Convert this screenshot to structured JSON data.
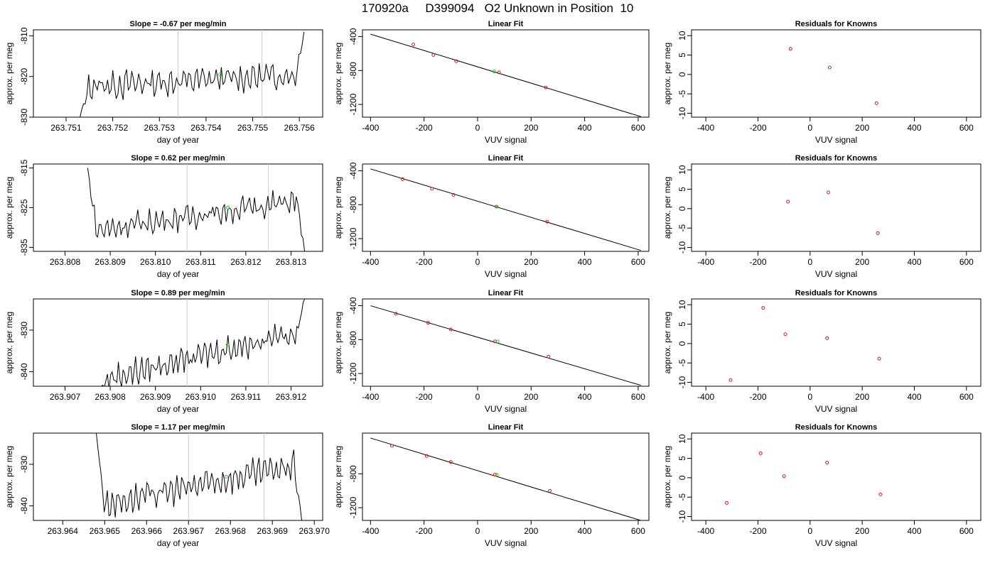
{
  "page_title": "170920a     D399094   O2 Unknown in Position  10",
  "colors": {
    "line": "#000000",
    "residual_points": "#cc2222",
    "unknown_point": "#22cc22",
    "marker_lines": "#c8c8c8"
  },
  "chart_data": [
    {
      "type": "line",
      "panel": "time-1",
      "title": "Slope =  -0.67  per meg/min",
      "xlabel": "day of year",
      "ylabel": "approx. per meg",
      "xlim": [
        263.7503,
        263.7565
      ],
      "ylim": [
        -830,
        -808.5
      ],
      "xticks": [
        "263.751",
        "263.752",
        "263.753",
        "263.754",
        "263.755",
        "263.756"
      ],
      "yticks": [
        "-810",
        "-820",
        "-830"
      ],
      "markers": [
        263.7534,
        263.7552
      ],
      "series_x_range": [
        263.7513,
        263.7561
      ],
      "unknown_point": {
        "x": 263.7543,
        "y": -819.5
      },
      "tail_start": -830,
      "tail_end": -809,
      "baseline": -821,
      "trend": 1.5,
      "noise": 2.8
    },
    {
      "type": "line",
      "panel": "time-2",
      "title": "Slope =  0.62  per meg/min",
      "xlabel": "day of year",
      "ylabel": "approx. per meg",
      "xlim": [
        263.8073,
        263.8137
      ],
      "ylim": [
        -836,
        -814
      ],
      "xticks": [
        "263.808",
        "263.809",
        "263.810",
        "263.811",
        "263.812",
        "263.813"
      ],
      "yticks": [
        "-815",
        "-825",
        "-835"
      ],
      "markers": [
        263.8107,
        263.8125
      ],
      "series_x_range": [
        263.8085,
        263.8133
      ],
      "unknown_point": {
        "x": 263.8116,
        "y": -825
      },
      "tail_start": -815,
      "tail_end": -836,
      "baseline": -827,
      "trend": 4,
      "noise": 2.6
    },
    {
      "type": "line",
      "panel": "time-3",
      "title": "Slope =  0.89  per meg/min",
      "xlabel": "day of year",
      "ylabel": "approx. per meg",
      "xlim": [
        263.9063,
        263.9127
      ],
      "ylim": [
        -843.5,
        -822.5
      ],
      "xticks": [
        "263.907",
        "263.908",
        "263.909",
        "263.910",
        "263.911",
        "263.912"
      ],
      "yticks": [
        "-830",
        "-840"
      ],
      "markers": [
        263.9097,
        263.9115
      ],
      "series_x_range": [
        263.9078,
        263.9123
      ],
      "unknown_point": {
        "x": 263.9106,
        "y": -833.5
      },
      "tail_start": -843.5,
      "tail_end": -822.5,
      "baseline": -836,
      "trend": 6,
      "noise": 2.6
    },
    {
      "type": "line",
      "panel": "time-4",
      "title": "Slope =  1.17  per meg/min",
      "xlabel": "day of year",
      "ylabel": "approx. per meg",
      "xlim": [
        263.9633,
        263.9702
      ],
      "ylim": [
        -843.5,
        -822.5
      ],
      "xticks": [
        "263.964",
        "263.965",
        "263.966",
        "263.967",
        "263.968",
        "263.969",
        "263.970"
      ],
      "yticks": [
        "-830",
        "-840"
      ],
      "markers": [
        263.967,
        263.9688
      ],
      "series_x_range": [
        263.9648,
        263.9697
      ],
      "unknown_point": {
        "x": 263.9679,
        "y": -833
      },
      "tail_start": -822.5,
      "tail_end": -843.5,
      "baseline": -835,
      "trend": 5,
      "noise": 2.7
    },
    {
      "type": "scatter",
      "panel": "fit-1",
      "title": "Linear Fit",
      "xlabel": "VUV signal",
      "ylabel": "approx. per meg",
      "xlim": [
        -430,
        640
      ],
      "ylim": [
        -1350,
        -320
      ],
      "xticks": [
        "-400",
        "-200",
        "0",
        "200",
        "400",
        "600"
      ],
      "yticks": [
        "-400",
        "-800",
        "-1200"
      ],
      "fit_line": [
        [
          -400,
          -371
        ],
        [
          610,
          -1344
        ]
      ],
      "points": [
        [
          -240,
          -493
        ],
        [
          -165,
          -617
        ],
        [
          -80,
          -690
        ],
        [
          80,
          -821
        ],
        [
          255,
          -1000
        ]
      ],
      "unknown_point": [
        62,
        -810
      ]
    },
    {
      "type": "scatter",
      "panel": "fit-2",
      "title": "Linear Fit",
      "xlabel": "VUV signal",
      "ylabel": "approx. per meg",
      "xlim": [
        -430,
        640
      ],
      "ylim": [
        -1350,
        -320
      ],
      "xticks": [
        "-400",
        "-200",
        "0",
        "200",
        "400",
        "600"
      ],
      "yticks": [
        "-400",
        "-800",
        "-1200"
      ],
      "fit_line": [
        [
          -400,
          -378
        ],
        [
          610,
          -1339
        ]
      ],
      "points": [
        [
          -280,
          -500
        ],
        [
          -170,
          -612
        ],
        [
          -90,
          -683
        ],
        [
          70,
          -822
        ],
        [
          260,
          -1000
        ]
      ],
      "unknown_point": [
        72,
        -823
      ]
    },
    {
      "type": "scatter",
      "panel": "fit-3",
      "title": "Linear Fit",
      "xlabel": "VUV signal",
      "ylabel": "approx. per meg",
      "xlim": [
        -430,
        640
      ],
      "ylim": [
        -1350,
        -320
      ],
      "xticks": [
        "-400",
        "-200",
        "0",
        "200",
        "400",
        "600"
      ],
      "yticks": [
        "-400",
        "-800",
        "-1200"
      ],
      "fit_line": [
        [
          -400,
          -400
        ],
        [
          610,
          -1339
        ]
      ],
      "points": [
        [
          -305,
          -495
        ],
        [
          -185,
          -602
        ],
        [
          -100,
          -680
        ],
        [
          65,
          -820
        ],
        [
          265,
          -1000
        ]
      ],
      "unknown_point": [
        75,
        -822
      ]
    },
    {
      "type": "scatter",
      "panel": "fit-4",
      "title": "Linear Fit",
      "xlabel": "VUV signal",
      "ylabel": "approx. per meg",
      "xlim": [
        -430,
        640
      ],
      "ylim": [
        -1350,
        -320
      ],
      "xticks": [
        "-400",
        "-200",
        "0",
        "200",
        "400",
        "600"
      ],
      "yticks": [
        "-800",
        "-1200"
      ],
      "fit_line": [
        [
          -400,
          -378
        ],
        [
          610,
          -1350
        ]
      ],
      "points": [
        [
          -320,
          -470
        ],
        [
          -190,
          -590
        ],
        [
          -100,
          -660
        ],
        [
          65,
          -810
        ],
        [
          270,
          -1000
        ]
      ],
      "unknown_point": [
        72,
        -812
      ]
    },
    {
      "type": "scatter",
      "panel": "resid-1",
      "title": "Residuals for Knowns",
      "xlabel": "VUV signal",
      "ylabel": "approx. per meg",
      "xlim": [
        -455,
        655
      ],
      "ylim": [
        -11,
        11.5
      ],
      "xticks": [
        "-400",
        "-200",
        "0",
        "200",
        "400",
        "600"
      ],
      "yticks": [
        "10",
        "5",
        "0",
        "-5",
        "-10"
      ],
      "points": [
        [
          -75,
          6.6
        ],
        [
          75,
          1.8
        ],
        [
          255,
          -7.4
        ]
      ]
    },
    {
      "type": "scatter",
      "panel": "resid-2",
      "title": "Residuals for Knowns",
      "xlabel": "VUV signal",
      "ylabel": "approx. per meg",
      "xlim": [
        -455,
        655
      ],
      "ylim": [
        -11,
        11.5
      ],
      "xticks": [
        "-400",
        "-200",
        "0",
        "200",
        "400",
        "600"
      ],
      "yticks": [
        "10",
        "5",
        "0",
        "-5",
        "-10"
      ],
      "points": [
        [
          -85,
          1.8
        ],
        [
          70,
          4.2
        ],
        [
          260,
          -6.3
        ]
      ]
    },
    {
      "type": "scatter",
      "panel": "resid-3",
      "title": "Residuals for Knowns",
      "xlabel": "VUV signal",
      "ylabel": "approx. per meg",
      "xlim": [
        -455,
        655
      ],
      "ylim": [
        -11,
        11.5
      ],
      "xticks": [
        "-400",
        "-200",
        "0",
        "200",
        "400",
        "600"
      ],
      "yticks": [
        "10",
        "5",
        "0",
        "-5",
        "-10"
      ],
      "points": [
        [
          -305,
          -9.4
        ],
        [
          -180,
          9.2
        ],
        [
          -95,
          2.4
        ],
        [
          65,
          1.4
        ],
        [
          265,
          -3.9
        ]
      ]
    },
    {
      "type": "scatter",
      "panel": "resid-4",
      "title": "Residuals for Knowns",
      "xlabel": "VUV signal",
      "ylabel": "approx. per meg",
      "xlim": [
        -455,
        655
      ],
      "ylim": [
        -11,
        11.5
      ],
      "xticks": [
        "-400",
        "-200",
        "0",
        "200",
        "400",
        "600"
      ],
      "yticks": [
        "10",
        "5",
        "0",
        "-5",
        "-10"
      ],
      "points": [
        [
          -320,
          -6.5
        ],
        [
          -190,
          6.3
        ],
        [
          -100,
          0.4
        ],
        [
          65,
          3.9
        ],
        [
          270,
          -4.3
        ]
      ]
    }
  ]
}
